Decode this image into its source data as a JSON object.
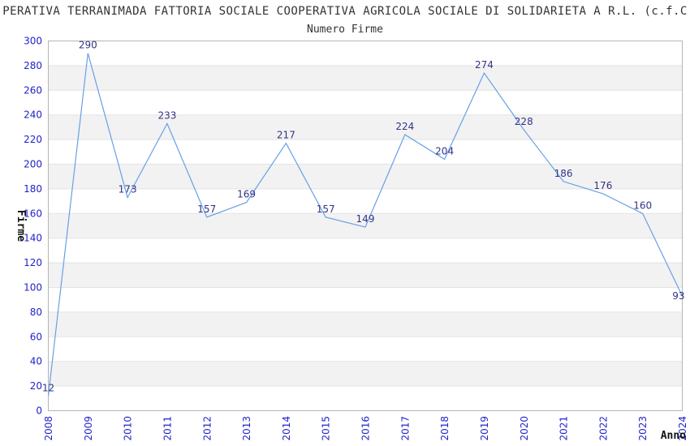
{
  "header": {
    "title": "PERATIVA TERRANIMADA FATTORIA SOCIALE COOPERATIVA AGRICOLA SOCIALE DI SOLIDARIETA A R.L. (c.f.C",
    "subtitle": "Numero Firme"
  },
  "chart_data": {
    "type": "line",
    "title": "Numero Firme",
    "xlabel": "Anno",
    "ylabel": "Firme",
    "x": [
      2008,
      2009,
      2010,
      2011,
      2012,
      2013,
      2014,
      2015,
      2016,
      2017,
      2018,
      2019,
      2020,
      2021,
      2022,
      2023,
      2024
    ],
    "values": [
      12,
      290,
      173,
      233,
      157,
      169,
      217,
      157,
      149,
      224,
      204,
      274,
      228,
      186,
      176,
      160,
      93
    ],
    "ylim": [
      0,
      300
    ],
    "ytick_step": 20,
    "grid": "horizontal-gridlines-with-alternating-bands",
    "legend": "none",
    "colors": {
      "line": "#66a0e6",
      "tick_labels": "#2222cc",
      "value_labels": "#333388",
      "band_fill": "#f2f2f2",
      "gridline": "#e3e3e3",
      "plot_border": "#b5b5b5",
      "axis_title": "#111111",
      "title_text": "#333333"
    }
  }
}
